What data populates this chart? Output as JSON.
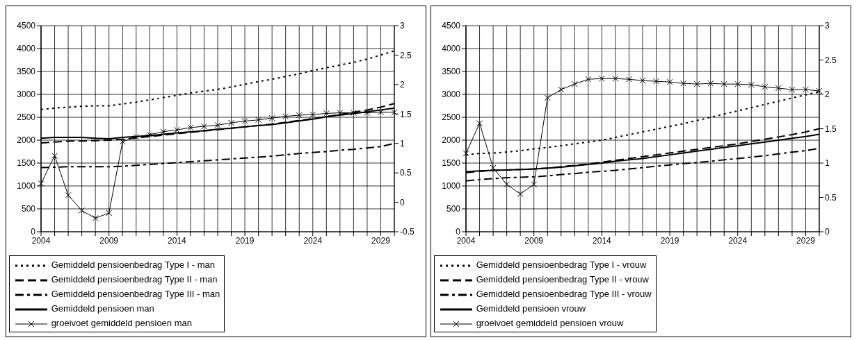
{
  "chart_data": [
    {
      "type": "line",
      "categories": [
        "2004",
        null,
        null,
        null,
        null,
        "2009",
        null,
        null,
        null,
        null,
        "2014",
        null,
        null,
        null,
        null,
        "2019",
        null,
        null,
        null,
        null,
        "2024",
        null,
        null,
        null,
        null,
        "2029",
        null
      ],
      "ylim": [
        0,
        4500
      ],
      "yticks": [
        0,
        500,
        1000,
        1500,
        2000,
        2500,
        3000,
        3500,
        4000,
        4500
      ],
      "y2lim": [
        -0.5,
        3
      ],
      "y2ticks": [
        -0.5,
        0,
        0.5,
        1,
        1.5,
        2,
        2.5,
        3
      ],
      "grid": true,
      "legend": "bottom",
      "series": [
        {
          "name": "Gemiddeld pensioenbedrag Type I - man",
          "color": "#000000",
          "line_style": "dotted",
          "marker": "none",
          "values": [
            2670,
            2700,
            2720,
            2740,
            2750,
            2750,
            2790,
            2830,
            2880,
            2930,
            2980,
            3030,
            3070,
            3110,
            3160,
            3220,
            3280,
            3330,
            3390,
            3450,
            3520,
            3580,
            3640,
            3700,
            3770,
            3860,
            3950
          ]
        },
        {
          "name": "Gemiddeld pensioenbedrag Type II - man",
          "color": "#000000",
          "line_style": "dashed",
          "marker": "none",
          "values": [
            1940,
            1960,
            1980,
            1980,
            1990,
            2000,
            2020,
            2050,
            2080,
            2110,
            2140,
            2170,
            2200,
            2230,
            2260,
            2290,
            2320,
            2350,
            2390,
            2430,
            2470,
            2510,
            2560,
            2610,
            2660,
            2720,
            2800
          ]
        },
        {
          "name": "Gemiddeld pensioenbedrag Type III - man",
          "color": "#000000",
          "line_style": "dashdot",
          "marker": "none",
          "values": [
            1400,
            1410,
            1420,
            1420,
            1420,
            1420,
            1430,
            1450,
            1470,
            1490,
            1510,
            1530,
            1550,
            1570,
            1590,
            1610,
            1630,
            1650,
            1680,
            1710,
            1730,
            1750,
            1780,
            1800,
            1830,
            1860,
            1930
          ]
        },
        {
          "name": "Gemiddeld pensioen man",
          "color": "#000000",
          "line_style": "solid",
          "marker": "none",
          "values": [
            2040,
            2060,
            2060,
            2060,
            2040,
            2030,
            2060,
            2080,
            2100,
            2130,
            2160,
            2180,
            2210,
            2240,
            2260,
            2290,
            2320,
            2340,
            2380,
            2420,
            2460,
            2510,
            2550,
            2580,
            2620,
            2660,
            2700
          ]
        },
        {
          "name": "groeivoet gemiddeld pensioen man",
          "color": "#000000",
          "line_style": "solid",
          "marker": "cross",
          "axis": "y2",
          "values": [
            0.32,
            0.79,
            0.12,
            -0.14,
            -0.27,
            -0.18,
            1.03,
            1.11,
            1.15,
            1.2,
            1.23,
            1.27,
            1.29,
            1.31,
            1.35,
            1.38,
            1.4,
            1.43,
            1.46,
            1.48,
            1.49,
            1.51,
            1.52,
            1.52,
            1.52,
            1.53,
            1.53
          ]
        }
      ]
    },
    {
      "type": "line",
      "categories": [
        "2004",
        null,
        null,
        null,
        null,
        "2009",
        null,
        null,
        null,
        null,
        "2014",
        null,
        null,
        null,
        null,
        "2019",
        null,
        null,
        null,
        null,
        "2024",
        null,
        null,
        null,
        null,
        "2029",
        null
      ],
      "ylim": [
        0,
        4500
      ],
      "yticks": [
        0,
        500,
        1000,
        1500,
        2000,
        2500,
        3000,
        3500,
        4000,
        4500
      ],
      "y2lim": [
        0,
        3
      ],
      "y2ticks": [
        0,
        0.5,
        1,
        1.5,
        2,
        2.5,
        3
      ],
      "grid": true,
      "legend": "bottom",
      "series": [
        {
          "name": "Gemiddeld pensioenbedrag Type I - vrouw",
          "color": "#000000",
          "line_style": "dotted",
          "marker": "none",
          "values": [
            1680,
            1710,
            1720,
            1740,
            1770,
            1810,
            1840,
            1880,
            1920,
            1960,
            2000,
            2060,
            2120,
            2180,
            2240,
            2300,
            2360,
            2430,
            2500,
            2570,
            2640,
            2710,
            2780,
            2850,
            2920,
            2990,
            3060
          ]
        },
        {
          "name": "Gemiddeld pensioenbedrag Type II - vrouw",
          "color": "#000000",
          "line_style": "dashed",
          "marker": "none",
          "values": [
            1290,
            1320,
            1340,
            1350,
            1360,
            1370,
            1390,
            1420,
            1450,
            1480,
            1520,
            1560,
            1600,
            1640,
            1680,
            1720,
            1760,
            1800,
            1840,
            1880,
            1920,
            1970,
            2020,
            2070,
            2120,
            2180,
            2250
          ]
        },
        {
          "name": "Gemiddeld pensioenbedrag Type III - vrouw",
          "color": "#000000",
          "line_style": "dashdot",
          "marker": "none",
          "values": [
            1110,
            1140,
            1160,
            1180,
            1190,
            1200,
            1220,
            1250,
            1270,
            1300,
            1320,
            1340,
            1370,
            1400,
            1430,
            1460,
            1490,
            1510,
            1540,
            1570,
            1600,
            1630,
            1660,
            1700,
            1740,
            1770,
            1820
          ]
        },
        {
          "name": "Gemiddeld pensioen vrouw",
          "color": "#000000",
          "line_style": "solid",
          "marker": "none",
          "values": [
            1310,
            1330,
            1340,
            1350,
            1360,
            1370,
            1390,
            1410,
            1440,
            1470,
            1500,
            1540,
            1570,
            1600,
            1640,
            1680,
            1720,
            1760,
            1800,
            1840,
            1880,
            1920,
            1960,
            2000,
            2040,
            2080,
            2130
          ]
        },
        {
          "name": "groeivoet gemiddeld pensioen vrouw",
          "color": "#000000",
          "line_style": "solid",
          "marker": "cross",
          "axis": "y2",
          "values": [
            1.14,
            1.58,
            0.93,
            0.69,
            0.55,
            0.69,
            1.95,
            2.07,
            2.15,
            2.22,
            2.23,
            2.23,
            2.22,
            2.2,
            2.19,
            2.18,
            2.16,
            2.15,
            2.16,
            2.15,
            2.15,
            2.14,
            2.11,
            2.09,
            2.07,
            2.07,
            2.05
          ]
        }
      ]
    }
  ]
}
